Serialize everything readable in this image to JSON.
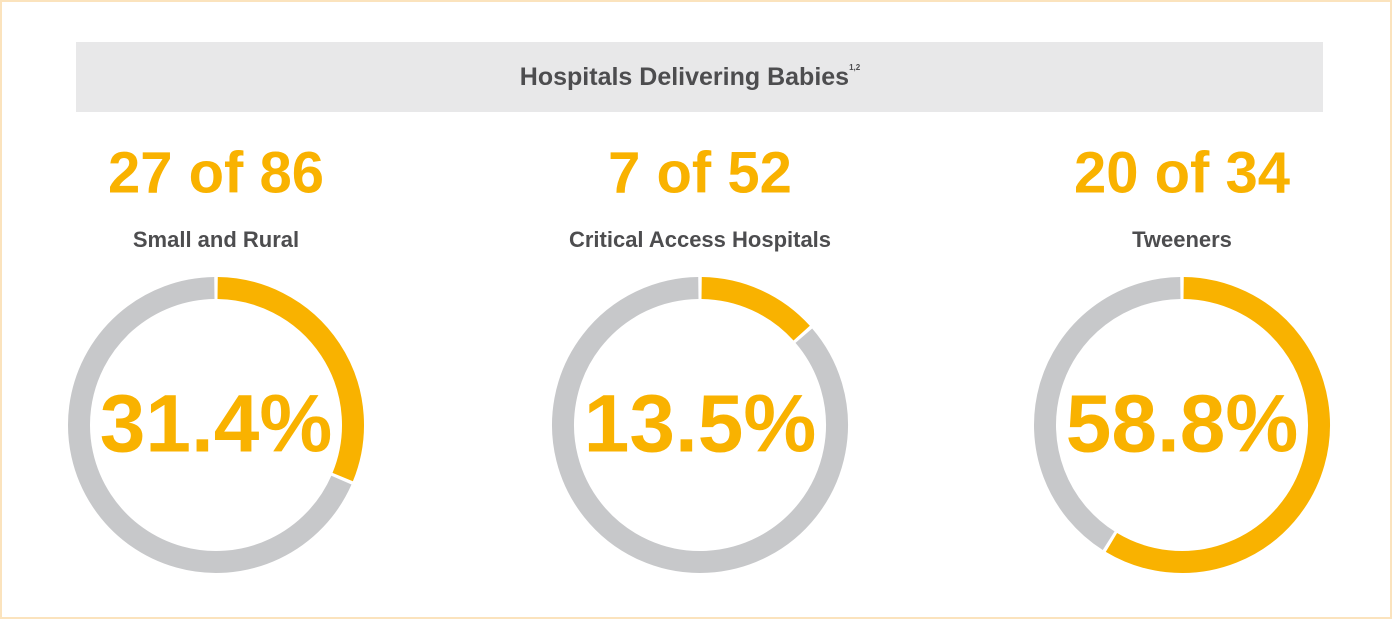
{
  "title": "Hospitals Delivering Babies",
  "title_note": "1,2",
  "chart_data": [
    {
      "type": "donut",
      "title": "27 of 86",
      "subtitle": "Small and Rural",
      "center_label": "31.4%",
      "values": [
        31.4,
        68.6
      ],
      "colors": [
        "#f9b200",
        "#c7c8ca"
      ]
    },
    {
      "type": "donut",
      "title": "7 of 52",
      "subtitle": "Critical Access Hospitals",
      "center_label": "13.5%",
      "values": [
        13.5,
        86.5
      ],
      "colors": [
        "#f9b200",
        "#c7c8ca"
      ]
    },
    {
      "type": "donut",
      "title": "20 of 34",
      "subtitle": "Tweeners",
      "center_label": "58.8%",
      "values": [
        58.8,
        41.2
      ],
      "colors": [
        "#f9b200",
        "#c7c8ca"
      ]
    }
  ]
}
